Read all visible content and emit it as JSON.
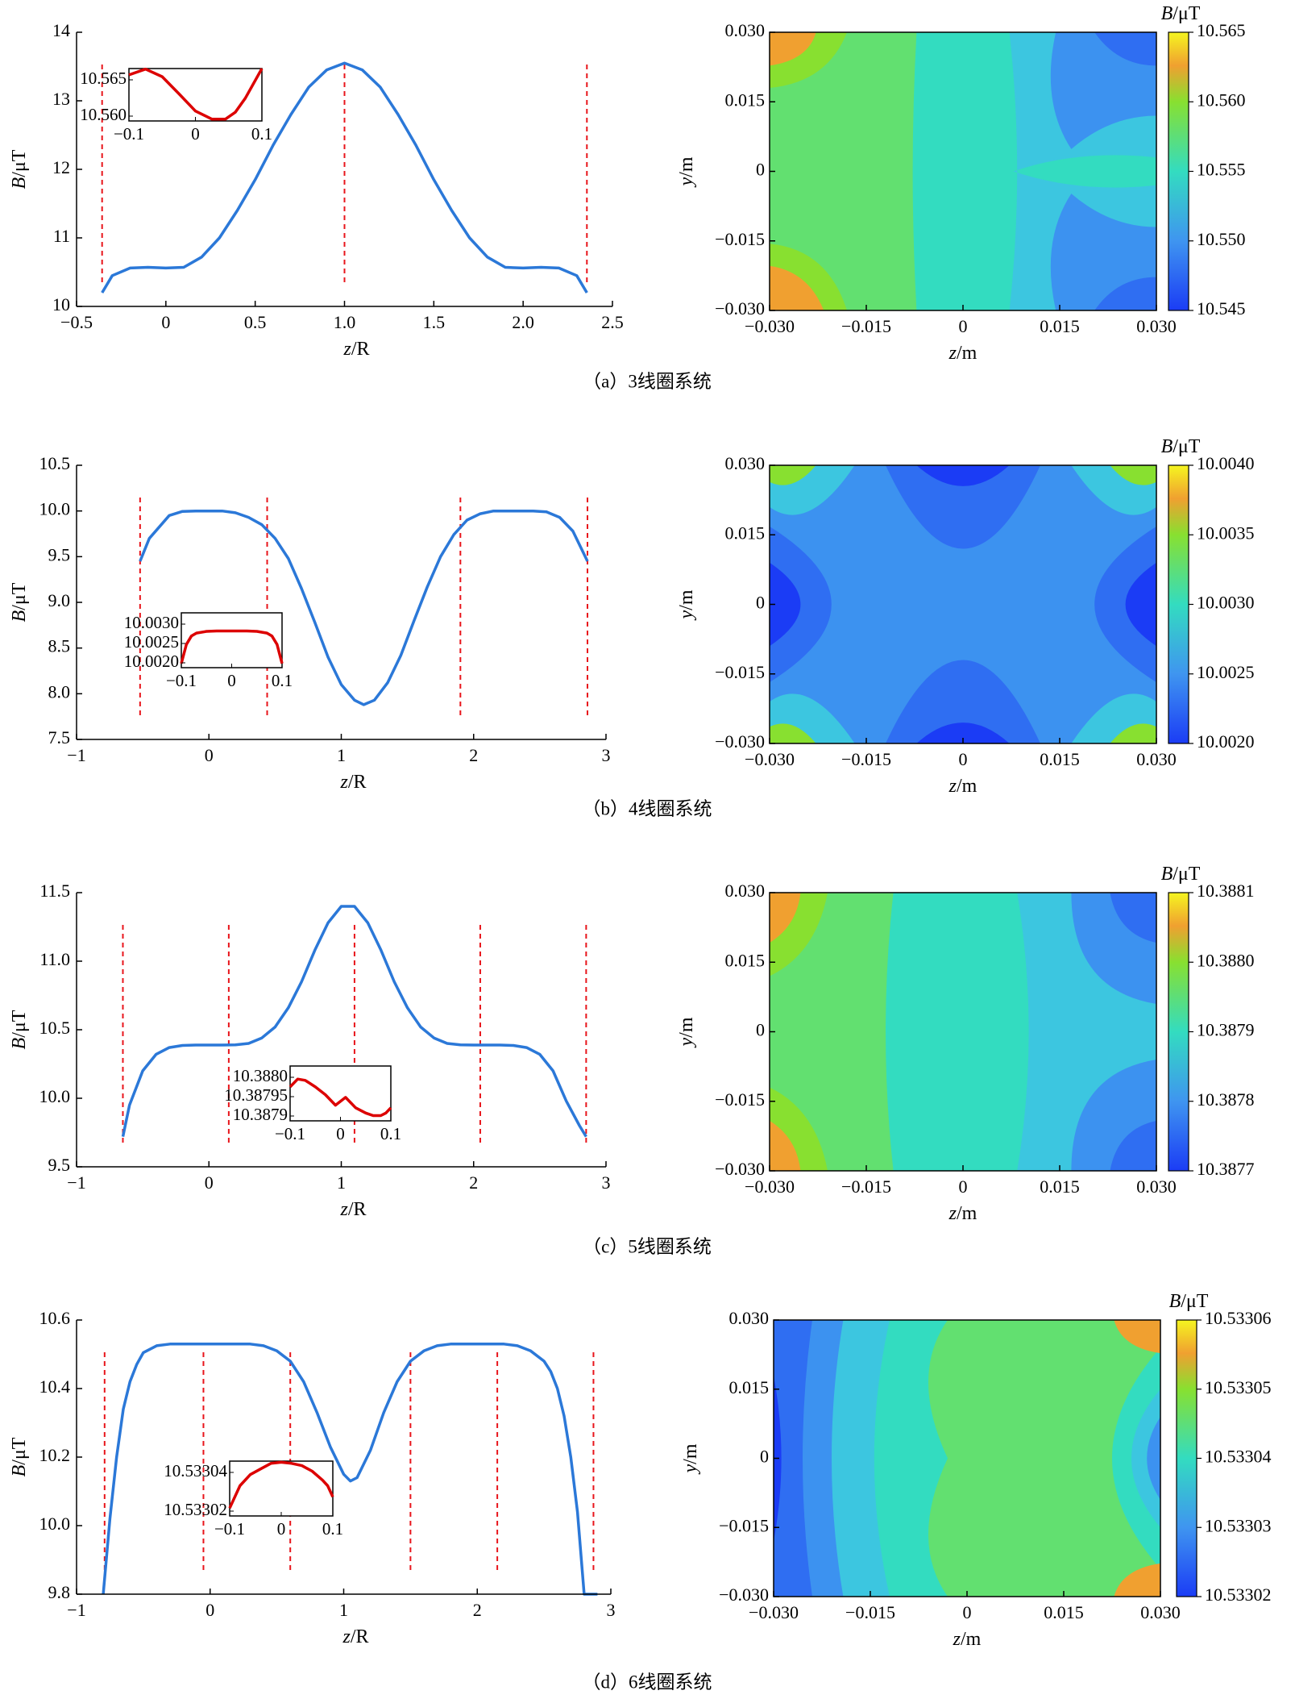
{
  "chart_data": [
    {
      "type": "line",
      "panel": "a",
      "caption": "（a）3线圈系统",
      "xlabel": "z/R",
      "ylabel": "B/μT",
      "xlim": [
        -0.5,
        2.5
      ],
      "ylim": [
        10,
        14
      ],
      "xticks": [
        "−0.5",
        "0",
        "0.5",
        "1.0",
        "1.5",
        "2.0",
        "2.5"
      ],
      "yticks": [
        "10",
        "11",
        "12",
        "13",
        "14"
      ],
      "series": [
        {
          "name": "B",
          "color": "#2b78d8",
          "x": [
            -0.357,
            -0.3,
            -0.2,
            -0.1,
            0.0,
            0.1,
            0.2,
            0.3,
            0.4,
            0.5,
            0.6,
            0.7,
            0.8,
            0.9,
            1.0,
            1.1,
            1.2,
            1.3,
            1.4,
            1.5,
            1.6,
            1.7,
            1.8,
            1.9,
            2.0,
            2.1,
            2.2,
            2.3,
            2.357
          ],
          "y": [
            10.2,
            10.45,
            10.56,
            10.57,
            10.56,
            10.57,
            10.72,
            11.0,
            11.4,
            11.85,
            12.35,
            12.8,
            13.2,
            13.45,
            13.55,
            13.45,
            13.2,
            12.8,
            12.35,
            11.85,
            11.4,
            11.0,
            10.72,
            10.57,
            10.56,
            10.57,
            10.56,
            10.45,
            10.2
          ]
        }
      ],
      "coil_positions": [
        -0.357,
        1.0,
        2.357
      ],
      "inset": {
        "xlim": [
          -0.1,
          0.1
        ],
        "ylim": [
          10.5573,
          10.5663
        ],
        "xticks": [
          "−0.1",
          "0",
          "0.1"
        ],
        "yticks": [
          "10.565",
          "10.560"
        ],
        "color": "#dc0000",
        "x": [
          -0.1,
          -0.075,
          -0.05,
          -0.025,
          0.0,
          0.025,
          0.045,
          0.06,
          0.075,
          0.1
        ],
        "y": [
          10.5652,
          10.5662,
          10.5649,
          10.562,
          10.559,
          10.5576,
          10.5576,
          10.5588,
          10.5612,
          10.5663
        ]
      },
      "heatmap": {
        "title": "B/μT",
        "xlabel": "z/m",
        "ylabel": "y/m",
        "xticks": [
          "−0.030",
          "−0.015",
          "0",
          "0.015",
          "0.030"
        ],
        "yticks": [
          "0.030",
          "0.015",
          "0",
          "−0.015",
          "−0.030"
        ],
        "colorbar_ticks": [
          "10.565",
          "10.560",
          "10.555",
          "10.550",
          "10.545"
        ],
        "pattern": "a"
      }
    },
    {
      "type": "line",
      "panel": "b",
      "caption": "（b）4线圈系统",
      "xlabel": "z/R",
      "ylabel": "B/μT",
      "xlim": [
        -1,
        3
      ],
      "ylim": [
        7.5,
        10.5
      ],
      "xticks": [
        "−1",
        "0",
        "1",
        "2",
        "3"
      ],
      "yticks": [
        "7.5",
        "8.0",
        "8.5",
        "9.0",
        "9.5",
        "10.0",
        "10.5"
      ],
      "series": [
        {
          "name": "B",
          "color": "#2b78d8",
          "x": [
            -0.52,
            -0.45,
            -0.3,
            -0.2,
            -0.1,
            0.0,
            0.1,
            0.2,
            0.3,
            0.4,
            0.5,
            0.6,
            0.7,
            0.8,
            0.9,
            1.0,
            1.1,
            1.17,
            1.25,
            1.35,
            1.45,
            1.55,
            1.65,
            1.75,
            1.85,
            1.95,
            2.05,
            2.15,
            2.25,
            2.35,
            2.45,
            2.55,
            2.65,
            2.75,
            2.86
          ],
          "y": [
            9.45,
            9.7,
            9.95,
            9.995,
            10.0,
            10.0,
            10.0,
            9.98,
            9.93,
            9.85,
            9.7,
            9.48,
            9.15,
            8.78,
            8.4,
            8.1,
            7.93,
            7.88,
            7.93,
            8.12,
            8.42,
            8.8,
            9.17,
            9.5,
            9.74,
            9.9,
            9.97,
            10.0,
            10.0,
            10.0,
            10.0,
            9.99,
            9.93,
            9.78,
            9.45
          ]
        }
      ],
      "coil_positions": [
        -0.52,
        0.44,
        1.9,
        2.86
      ],
      "inset": {
        "xlim": [
          -0.1,
          0.1
        ],
        "ylim": [
          10.0019,
          10.0032
        ],
        "xticks": [
          "−0.1",
          "0",
          "0.1"
        ],
        "yticks": [
          "10.0030",
          "10.0025",
          "10.0020"
        ],
        "color": "#dc0000",
        "x": [
          -0.1,
          -0.09,
          -0.08,
          -0.07,
          -0.05,
          -0.03,
          0.0,
          0.03,
          0.05,
          0.07,
          0.08,
          0.09,
          0.1
        ],
        "y": [
          10.002,
          10.00245,
          10.00265,
          10.00272,
          10.00276,
          10.00277,
          10.00277,
          10.00277,
          10.00276,
          10.00272,
          10.00265,
          10.00245,
          10.002
        ]
      },
      "heatmap": {
        "title": "B/μT",
        "xlabel": "z/m",
        "ylabel": "y/m",
        "xticks": [
          "−0.030",
          "−0.015",
          "0",
          "0.015",
          "0.030"
        ],
        "yticks": [
          "0.030",
          "0.015",
          "0",
          "−0.015",
          "−0.030"
        ],
        "colorbar_ticks": [
          "10.0040",
          "10.0035",
          "10.0030",
          "10.0025",
          "10.0020"
        ],
        "pattern": "b"
      }
    },
    {
      "type": "line",
      "panel": "c",
      "caption": "（c）5线圈系统",
      "xlabel": "z/R",
      "ylabel": "B/μT",
      "xlim": [
        -1,
        3
      ],
      "ylim": [
        9.5,
        11.5
      ],
      "xticks": [
        "−1",
        "0",
        "1",
        "2",
        "3"
      ],
      "yticks": [
        "9.5",
        "10.0",
        "10.5",
        "11.0",
        "11.5"
      ],
      "series": [
        {
          "name": "B",
          "color": "#2b78d8",
          "x": [
            -0.65,
            -0.6,
            -0.5,
            -0.4,
            -0.3,
            -0.2,
            -0.1,
            0.0,
            0.1,
            0.2,
            0.3,
            0.4,
            0.5,
            0.6,
            0.7,
            0.8,
            0.9,
            1.0,
            1.1,
            1.2,
            1.3,
            1.4,
            1.5,
            1.6,
            1.7,
            1.8,
            1.9,
            2.0,
            2.1,
            2.2,
            2.3,
            2.4,
            2.5,
            2.6,
            2.7,
            2.8,
            2.85
          ],
          "y": [
            9.72,
            9.95,
            10.2,
            10.32,
            10.37,
            10.385,
            10.388,
            10.388,
            10.388,
            10.39,
            10.4,
            10.44,
            10.52,
            10.66,
            10.85,
            11.08,
            11.28,
            11.4,
            11.4,
            11.28,
            11.08,
            10.85,
            10.66,
            10.52,
            10.44,
            10.4,
            10.39,
            10.388,
            10.388,
            10.388,
            10.385,
            10.37,
            10.32,
            10.2,
            9.98,
            9.8,
            9.72
          ]
        }
      ],
      "coil_positions": [
        -0.65,
        0.15,
        1.1,
        2.05,
        2.85
      ],
      "inset": {
        "xlim": [
          -0.1,
          0.1
        ],
        "ylim": [
          10.38784,
          10.38805
        ],
        "xticks": [
          "−0.1",
          "0",
          "0.1"
        ],
        "yticks": [
          "10.3880",
          "10.38795",
          "10.3879"
        ],
        "color": "#dc0000",
        "x": [
          -0.1,
          -0.085,
          -0.07,
          -0.05,
          -0.03,
          -0.01,
          0.01,
          0.03,
          0.05,
          0.065,
          0.08,
          0.09,
          0.1
        ],
        "y": [
          10.38797,
          10.388,
          10.387995,
          10.38797,
          10.38794,
          10.3879,
          10.38793,
          10.38789,
          10.38787,
          10.38786,
          10.38786,
          10.38787,
          10.38789
        ]
      },
      "heatmap": {
        "title": "B/μT",
        "xlabel": "z/m",
        "ylabel": "y/m",
        "xticks": [
          "−0.030",
          "−0.015",
          "0",
          "0.015",
          "0.030"
        ],
        "yticks": [
          "0.030",
          "0.015",
          "0",
          "−0.015",
          "−0.030"
        ],
        "colorbar_ticks": [
          "10.3881",
          "10.3880",
          "10.3879",
          "10.3878",
          "10.3877"
        ],
        "pattern": "c"
      }
    },
    {
      "type": "line",
      "panel": "d",
      "caption": "（d）6线圈系统",
      "xlabel": "z/R",
      "ylabel": "B/μT",
      "xlim": [
        -1,
        3
      ],
      "ylim": [
        9.8,
        10.6
      ],
      "xticks": [
        "−1",
        "0",
        "1",
        "2",
        "3"
      ],
      "yticks": [
        "9.8",
        "10.0",
        "10.2",
        "10.4",
        "10.6"
      ],
      "series": [
        {
          "name": "B",
          "color": "#2b78d8",
          "x": [
            -0.8,
            -0.75,
            -0.7,
            -0.65,
            -0.6,
            -0.55,
            -0.5,
            -0.4,
            -0.3,
            -0.2,
            -0.1,
            0.0,
            0.1,
            0.2,
            0.3,
            0.4,
            0.5,
            0.6,
            0.7,
            0.8,
            0.9,
            1.0,
            1.05,
            1.1,
            1.2,
            1.3,
            1.4,
            1.5,
            1.6,
            1.7,
            1.8,
            1.9,
            2.0,
            2.1,
            2.2,
            2.3,
            2.4,
            2.5,
            2.55,
            2.6,
            2.65,
            2.7,
            2.75,
            2.8,
            2.9
          ],
          "y": [
            9.8,
            10.02,
            10.2,
            10.34,
            10.42,
            10.47,
            10.505,
            10.525,
            10.53,
            10.53,
            10.53,
            10.53,
            10.53,
            10.53,
            10.53,
            10.525,
            10.51,
            10.48,
            10.42,
            10.33,
            10.23,
            10.15,
            10.13,
            10.14,
            10.22,
            10.33,
            10.42,
            10.48,
            10.51,
            10.525,
            10.53,
            10.53,
            10.53,
            10.53,
            10.53,
            10.525,
            10.51,
            10.48,
            10.45,
            10.4,
            10.32,
            10.2,
            10.04,
            9.8,
            9.8
          ]
        }
      ],
      "coil_positions": [
        -0.79,
        -0.05,
        0.6,
        1.5,
        2.15,
        2.87
      ],
      "inset": {
        "xlim": [
          -0.1,
          0.1
        ],
        "ylim": [
          10.533003,
          10.533052
        ],
        "xticks": [
          "−0.1",
          "0",
          "0.1"
        ],
        "yticks": [
          "10.53304",
          "10.53302"
        ],
        "color": "#dc0000",
        "x": [
          -0.1,
          -0.08,
          -0.06,
          -0.04,
          -0.02,
          0.0,
          0.02,
          0.04,
          0.06,
          0.08,
          0.09,
          0.1
        ],
        "y": [
          10.53301,
          10.53303,
          10.53304,
          10.533045,
          10.53305,
          10.533051,
          10.53305,
          10.533048,
          10.533043,
          10.533035,
          10.53303,
          10.53302
        ]
      },
      "heatmap": {
        "title": "B/μT",
        "xlabel": "z/m",
        "ylabel": "y/m",
        "xticks": [
          "−0.030",
          "−0.015",
          "0",
          "0.015",
          "0.030"
        ],
        "yticks": [
          "0.030",
          "0.015",
          "0",
          "−0.015",
          "−0.030"
        ],
        "colorbar_ticks": [
          "10.53306",
          "10.53305",
          "10.53304",
          "10.53303",
          "10.53302"
        ],
        "pattern": "d"
      }
    }
  ]
}
